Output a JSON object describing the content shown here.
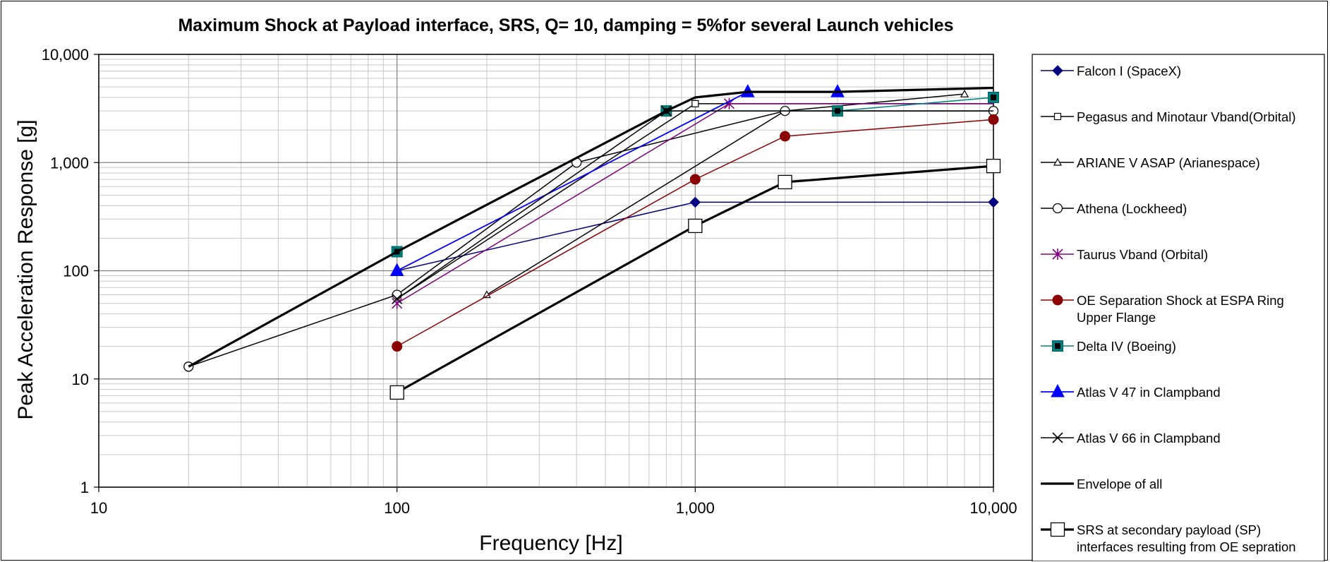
{
  "chart_data": {
    "type": "line",
    "title": "Maximum Shock at Payload interface, SRS, Q= 10, damping = 5%for several Launch vehicles",
    "xlabel": "Frequency [Hz]",
    "ylabel": "Peak Acceleration Response [g]",
    "xscale": "log",
    "yscale": "log",
    "xlim": [
      10,
      10000
    ],
    "ylim": [
      1,
      10000
    ],
    "x_ticks": [
      {
        "value": 10,
        "label": "10"
      },
      {
        "value": 100,
        "label": "100"
      },
      {
        "value": 1000,
        "label": "1,000"
      },
      {
        "value": 10000,
        "label": "10,000"
      }
    ],
    "y_ticks": [
      {
        "value": 1,
        "label": "1"
      },
      {
        "value": 10,
        "label": "10"
      },
      {
        "value": 100,
        "label": "100"
      },
      {
        "value": 1000,
        "label": "1,000"
      },
      {
        "value": 10000,
        "label": "10,000"
      }
    ],
    "grid": true,
    "legend_position": "right",
    "series": [
      {
        "name": "Falcon I (SpaceX)",
        "color": "#000080",
        "marker": "diamond-filled",
        "width": 1.5,
        "points": [
          [
            100,
            100
          ],
          [
            1000,
            430
          ],
          [
            10000,
            430
          ]
        ],
        "marker_points": [
          [
            1000,
            430
          ],
          [
            10000,
            430
          ]
        ]
      },
      {
        "name": "Pegasus and Minotaur Vband(Orbital)",
        "color": "#000000",
        "marker": "square-open-small",
        "width": 1.5,
        "points": [
          [
            100,
            55
          ],
          [
            1000,
            3500
          ],
          [
            10000,
            3500
          ]
        ],
        "marker_points": [
          [
            1000,
            3500
          ]
        ]
      },
      {
        "name": "ARIANE V ASAP (Arianespace)",
        "color": "#000000",
        "marker": "triangle-open",
        "width": 1.5,
        "points": [
          [
            200,
            60
          ],
          [
            2000,
            3000
          ],
          [
            8000,
            4300
          ]
        ],
        "marker_points": [
          [
            200,
            60
          ],
          [
            8000,
            4300
          ]
        ]
      },
      {
        "name": "Athena (Lockheed)",
        "color": "#000000",
        "marker": "circle-open",
        "width": 1.5,
        "points": [
          [
            20,
            13
          ],
          [
            100,
            60
          ],
          [
            400,
            1000
          ],
          [
            2000,
            3000
          ],
          [
            10000,
            3000
          ]
        ],
        "marker_points": [
          [
            20,
            13
          ],
          [
            100,
            60
          ],
          [
            400,
            1000
          ],
          [
            2000,
            3000
          ],
          [
            10000,
            3000
          ]
        ]
      },
      {
        "name": "Taurus Vband (Orbital)",
        "color": "#800080",
        "marker": "star",
        "width": 1.5,
        "points": [
          [
            100,
            50
          ],
          [
            1300,
            3500
          ],
          [
            10000,
            3500
          ]
        ],
        "marker_points": [
          [
            100,
            50
          ],
          [
            1300,
            3500
          ]
        ]
      },
      {
        "name": "OE Separation Shock at ESPA Ring Upper Flange",
        "color": "#8B0000",
        "marker": "circle-filled",
        "width": 1.5,
        "points": [
          [
            100,
            20
          ],
          [
            1000,
            700
          ],
          [
            2000,
            1750
          ],
          [
            10000,
            2500
          ]
        ],
        "marker_points": [
          [
            100,
            20
          ],
          [
            1000,
            700
          ],
          [
            2000,
            1750
          ],
          [
            10000,
            2500
          ]
        ]
      },
      {
        "name": "Delta IV  (Boeing)",
        "color": "#008080",
        "marker": "square-teal",
        "width": 1.5,
        "points": [
          [
            100,
            150
          ],
          [
            800,
            3000
          ],
          [
            3000,
            3000
          ],
          [
            10000,
            4000
          ]
        ],
        "marker_points": [
          [
            100,
            150
          ],
          [
            800,
            3000
          ],
          [
            3000,
            3000
          ],
          [
            10000,
            4000
          ]
        ]
      },
      {
        "name": "Atlas V 47 in Clampband",
        "color": "#0000FF",
        "marker": "triangle-filled",
        "width": 1.8,
        "points": [
          [
            100,
            100
          ],
          [
            1500,
            4500
          ],
          [
            3000,
            4500
          ]
        ],
        "marker_points": [
          [
            100,
            100
          ],
          [
            1500,
            4500
          ],
          [
            3000,
            4500
          ]
        ]
      },
      {
        "name": "Atlas V 66 in Clampband",
        "color": "#000000",
        "marker": "x",
        "width": 1.5,
        "points": [
          [
            100,
            55
          ],
          [
            800,
            3000
          ],
          [
            10000,
            3000
          ]
        ],
        "marker_points": [
          [
            100,
            55
          ],
          [
            800,
            3000
          ]
        ]
      },
      {
        "name": "Envelope of all",
        "color": "#000000",
        "marker": "none",
        "width": 3.2,
        "points": [
          [
            20,
            13
          ],
          [
            100,
            150
          ],
          [
            800,
            3000
          ],
          [
            1000,
            4000
          ],
          [
            1500,
            4500
          ],
          [
            3000,
            4500
          ],
          [
            10000,
            4900
          ]
        ],
        "marker_points": []
      },
      {
        "name": "SRS at secondary payload (SP) interfaces resulting from OE sepration",
        "color": "#000000",
        "marker": "square-open-large",
        "width": 3.2,
        "points": [
          [
            100,
            7.5
          ],
          [
            1000,
            260
          ],
          [
            2000,
            660
          ],
          [
            10000,
            930
          ]
        ],
        "marker_points": [
          [
            100,
            7.5
          ],
          [
            1000,
            260
          ],
          [
            2000,
            660
          ],
          [
            10000,
            930
          ]
        ]
      }
    ]
  }
}
